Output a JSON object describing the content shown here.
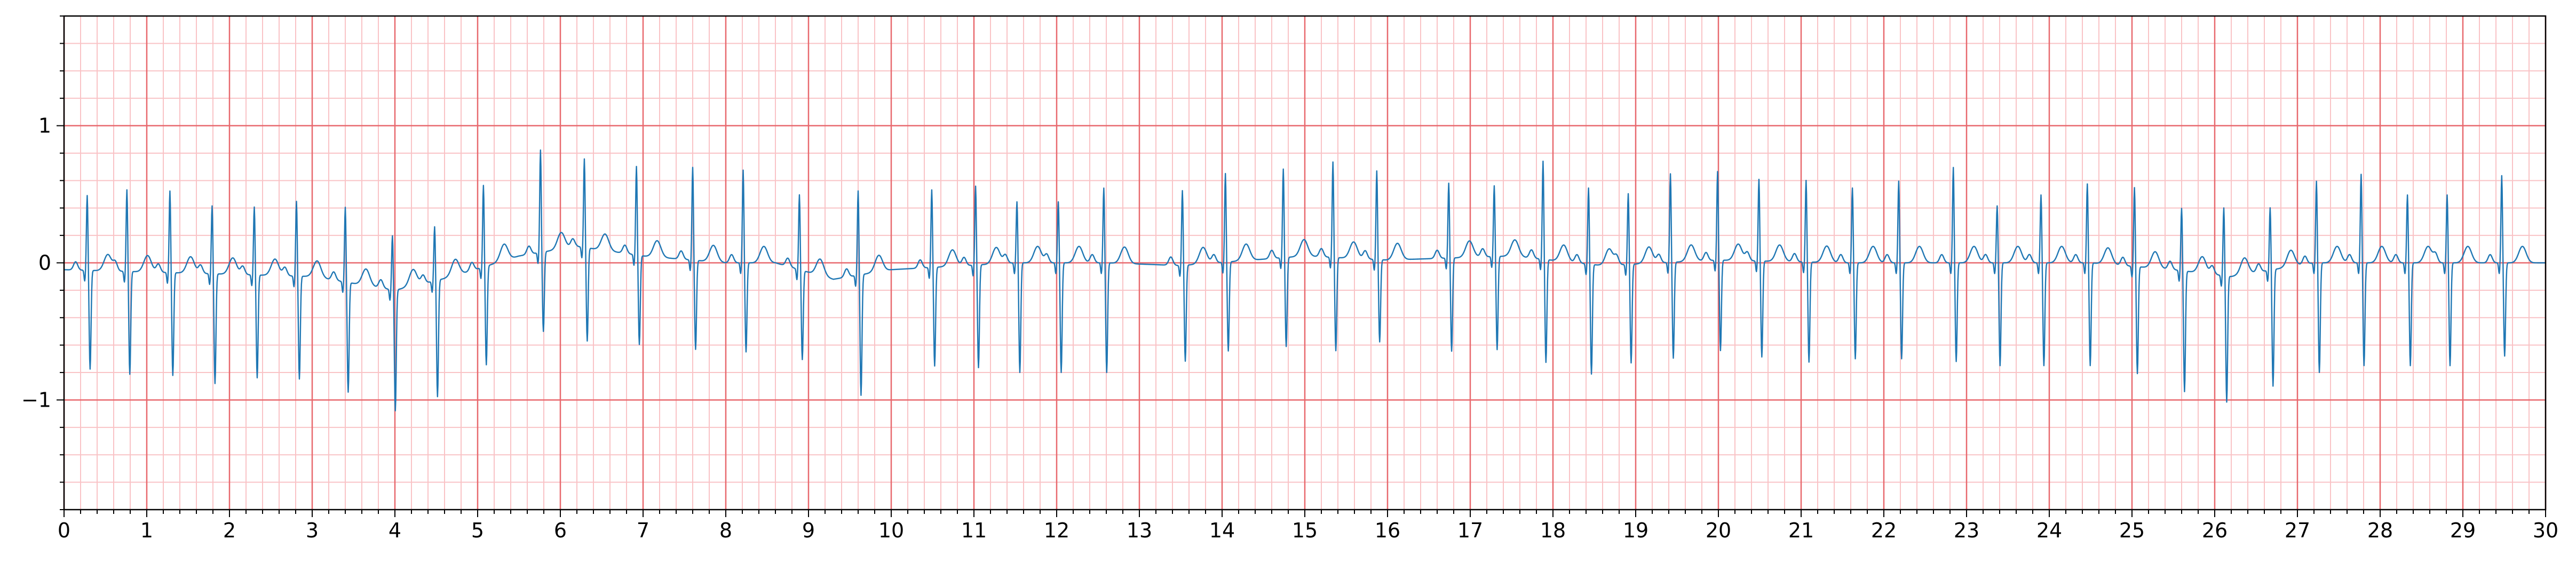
{
  "chart_data": {
    "type": "line",
    "title": "",
    "xlabel": "",
    "ylabel": "",
    "xlim": [
      0,
      30
    ],
    "ylim": [
      -1.8,
      1.8
    ],
    "grid": true,
    "grid_style": "ECG paper: major every 1 s / 1 mV-unit, minor every 0.2 s / 0.2 unit",
    "x_ticks": [
      0,
      1,
      2,
      3,
      4,
      5,
      6,
      7,
      8,
      9,
      10,
      11,
      12,
      13,
      14,
      15,
      16,
      17,
      18,
      19,
      20,
      21,
      22,
      23,
      24,
      25,
      26,
      27,
      28,
      29,
      30
    ],
    "x_tick_labels": [
      "0",
      "1",
      "2",
      "3",
      "4",
      "5",
      "6",
      "7",
      "8",
      "9",
      "10",
      "11",
      "12",
      "13",
      "14",
      "15",
      "16",
      "17",
      "18",
      "19",
      "20",
      "21",
      "22",
      "23",
      "24",
      "25",
      "26",
      "27",
      "28",
      "29",
      "30"
    ],
    "y_ticks": [
      -1,
      0,
      1
    ],
    "y_tick_labels": [
      "−1",
      "0",
      "1"
    ],
    "series": [
      {
        "color": "#1f77b4",
        "waveform": {
          "beat_times": [
            0.28,
            0.76,
            1.28,
            1.79,
            2.3,
            2.81,
            3.4,
            3.97,
            4.48,
            5.07,
            5.76,
            6.29,
            6.92,
            7.6,
            8.21,
            8.89,
            9.6,
            10.49,
            11.02,
            11.52,
            12.02,
            12.57,
            13.52,
            14.04,
            14.74,
            15.34,
            15.87,
            16.74,
            17.29,
            17.88,
            18.43,
            18.91,
            19.42,
            19.99,
            20.49,
            21.06,
            21.62,
            22.18,
            22.84,
            23.37,
            23.9,
            24.46,
            25.03,
            25.6,
            26.11,
            26.67,
            27.23,
            27.77,
            28.33,
            28.81,
            29.47
          ],
          "r_amplitudes": [
            0.55,
            0.6,
            0.6,
            0.5,
            0.5,
            0.55,
            0.55,
            0.4,
            0.4,
            0.6,
            0.75,
            0.65,
            0.65,
            0.68,
            0.68,
            0.55,
            0.62,
            0.57,
            0.58,
            0.45,
            0.45,
            0.55,
            0.55,
            0.65,
            0.65,
            0.7,
            0.65,
            0.55,
            0.52,
            0.72,
            0.56,
            0.52,
            0.65,
            0.65,
            0.6,
            0.6,
            0.55,
            0.6,
            0.7,
            0.42,
            0.5,
            0.58,
            0.58,
            0.46,
            0.5,
            0.46,
            0.6,
            0.65,
            0.5,
            0.5,
            0.64
          ],
          "s_amplitudes": [
            -0.72,
            -0.75,
            -0.75,
            -0.8,
            -0.75,
            -0.75,
            -0.8,
            -0.88,
            -0.85,
            -0.72,
            -0.58,
            -0.68,
            -0.65,
            -0.65,
            -0.65,
            -0.65,
            -0.88,
            -0.72,
            -0.75,
            -0.8,
            -0.8,
            -0.8,
            -0.7,
            -0.65,
            -0.65,
            -0.68,
            -0.6,
            -0.68,
            -0.68,
            -0.75,
            -0.8,
            -0.72,
            -0.7,
            -0.66,
            -0.7,
            -0.73,
            -0.7,
            -0.7,
            -0.72,
            -0.75,
            -0.75,
            -0.75,
            -0.78,
            -0.88,
            -0.92,
            -0.85,
            -0.8,
            -0.75,
            -0.75,
            -0.75,
            -0.68
          ],
          "baseline_points": [
            [
              0,
              -0.05
            ],
            [
              3,
              -0.1
            ],
            [
              4,
              -0.2
            ],
            [
              4.7,
              -0.1
            ],
            [
              5.5,
              0.05
            ],
            [
              6.2,
              0.12
            ],
            [
              7,
              0.05
            ],
            [
              8,
              0.0
            ],
            [
              8.6,
              0.0
            ],
            [
              9.3,
              -0.12
            ],
            [
              10,
              -0.05
            ],
            [
              11.5,
              0.0
            ],
            [
              12.6,
              0.0
            ],
            [
              13.5,
              -0.02
            ],
            [
              15,
              0.05
            ],
            [
              16,
              0.02
            ],
            [
              17.5,
              0.05
            ],
            [
              18.6,
              -0.02
            ],
            [
              20,
              0.02
            ],
            [
              21.5,
              0.0
            ],
            [
              23,
              0.0
            ],
            [
              24.5,
              0.0
            ],
            [
              25.5,
              -0.05
            ],
            [
              26.2,
              -0.1
            ],
            [
              27.2,
              0.0
            ],
            [
              29,
              0.0
            ],
            [
              30,
              0.0
            ]
          ],
          "t_wave_amplitude": 0.12,
          "p_wave_amplitude": 0.06
        }
      }
    ]
  },
  "colors": {
    "major_grid": "#e8696e",
    "minor_grid": "#f9c3c6",
    "line": "#1f77b4",
    "axes": "#000000"
  }
}
